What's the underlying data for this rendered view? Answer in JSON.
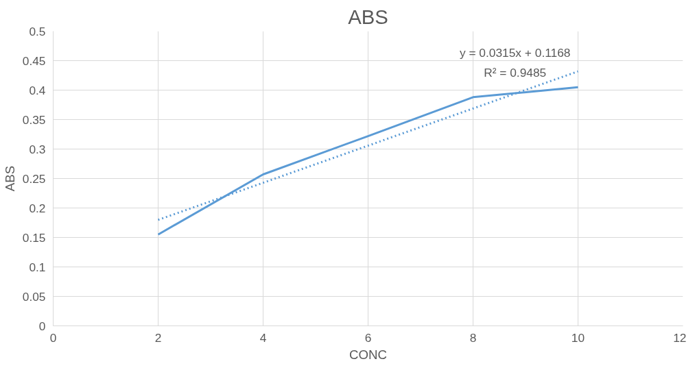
{
  "chart_data": {
    "type": "line",
    "title": "ABS",
    "xlabel": "CONC",
    "ylabel": "ABS",
    "x": [
      2,
      4,
      6,
      8,
      10
    ],
    "series": [
      {
        "color": "#5b9bd5",
        "values": [
          0.155,
          0.257,
          0.322,
          0.388,
          0.405
        ],
        "line_style": "solid"
      },
      {
        "type": "line",
        "x": [
          2,
          10
        ],
        "color": "#5b9bd5",
        "values": [
          0.1798,
          0.4318
        ],
        "line_style": "dotted"
      }
    ],
    "xlim": [
      0,
      12
    ],
    "xticks": [
      0,
      2,
      4,
      6,
      8,
      10,
      12
    ],
    "ylim": [
      0,
      0.5
    ],
    "yticks": [
      0,
      0.05,
      0.1,
      0.15,
      0.2,
      0.25,
      0.3,
      0.35,
      0.4,
      0.45,
      0.5
    ],
    "grid": true,
    "annotations": [
      "y = 0.0315x + 0.1168",
      "R² = 0.9485"
    ]
  }
}
